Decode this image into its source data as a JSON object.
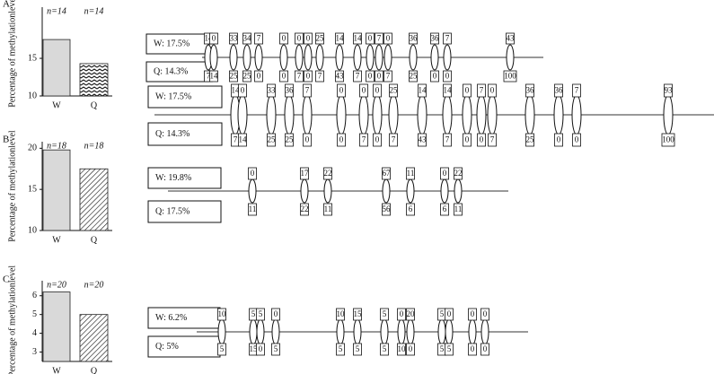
{
  "chart_data": [
    {
      "type": "bar",
      "panel": "A",
      "ylabel": "Percentage of methylationlevel",
      "categories": [
        "W",
        "Q"
      ],
      "values": [
        17.5,
        14.3
      ],
      "n_labels": [
        "n=14",
        "n=14"
      ],
      "colors": [
        "#d9d9d9",
        "#222222"
      ],
      "ylim": [
        10,
        21.8
      ],
      "yticks": [
        10,
        15
      ]
    },
    {
      "type": "bar",
      "panel": "B",
      "ylabel": "Percentage of methylationlevel",
      "categories": [
        "W",
        "Q"
      ],
      "values": [
        19.8,
        17.5
      ],
      "n_labels": [
        "n=18",
        "n=18"
      ],
      "colors": [
        "#d9d9d9",
        "#222222"
      ],
      "ylim": [
        10,
        20.8
      ],
      "yticks": [
        10,
        15,
        20
      ]
    },
    {
      "type": "bar",
      "panel": "C",
      "ylabel": "Percentage of methylationlevel",
      "categories": [
        "W",
        "Q"
      ],
      "values": [
        6.2,
        5
      ],
      "n_labels": [
        "n=20",
        "n=20"
      ],
      "colors": [
        "#d9d9d9",
        "#222222"
      ],
      "ylim": [
        2.5,
        6.8
      ],
      "yticks": [
        3,
        4,
        5,
        6
      ]
    }
  ],
  "diagrams": [
    {
      "w_label": "W: 17.5%",
      "q_label": "Q: 14.3%",
      "top": [
        14,
        0,
        33,
        34,
        7,
        0,
        0,
        0,
        25,
        14,
        14,
        0,
        7,
        0,
        36,
        36,
        7,
        43
      ],
      "bottom": [
        7,
        14,
        25,
        25,
        0,
        0,
        7,
        0,
        7,
        43,
        7,
        0,
        0,
        7,
        25,
        0,
        0,
        100
      ]
    },
    {
      "w_label": "W: 17.5%",
      "q_label": "Q: 14.3%",
      "top": [
        14,
        0,
        33,
        36,
        7,
        0,
        0,
        0,
        25,
        14,
        14,
        0,
        7,
        0,
        36,
        36,
        7,
        93
      ],
      "bottom": [
        7,
        14,
        25,
        25,
        0,
        0,
        7,
        0,
        7,
        43,
        7,
        0,
        0,
        7,
        25,
        0,
        0,
        100
      ]
    },
    {
      "w_label": "W: 19.8%",
      "q_label": "Q: 17.5%",
      "top": [
        0,
        17,
        22,
        67,
        11,
        0,
        22
      ],
      "bottom": [
        11,
        22,
        11,
        56,
        6,
        6,
        11
      ]
    },
    {
      "w_label": "W: 6.2%",
      "q_label": "Q: 5%",
      "top": [
        10,
        5,
        5,
        0,
        10,
        15,
        5,
        0,
        20,
        5,
        0,
        0,
        0
      ],
      "bottom": [
        5,
        15,
        0,
        5,
        5,
        5,
        5,
        10,
        0,
        5,
        5,
        0,
        0
      ]
    }
  ]
}
